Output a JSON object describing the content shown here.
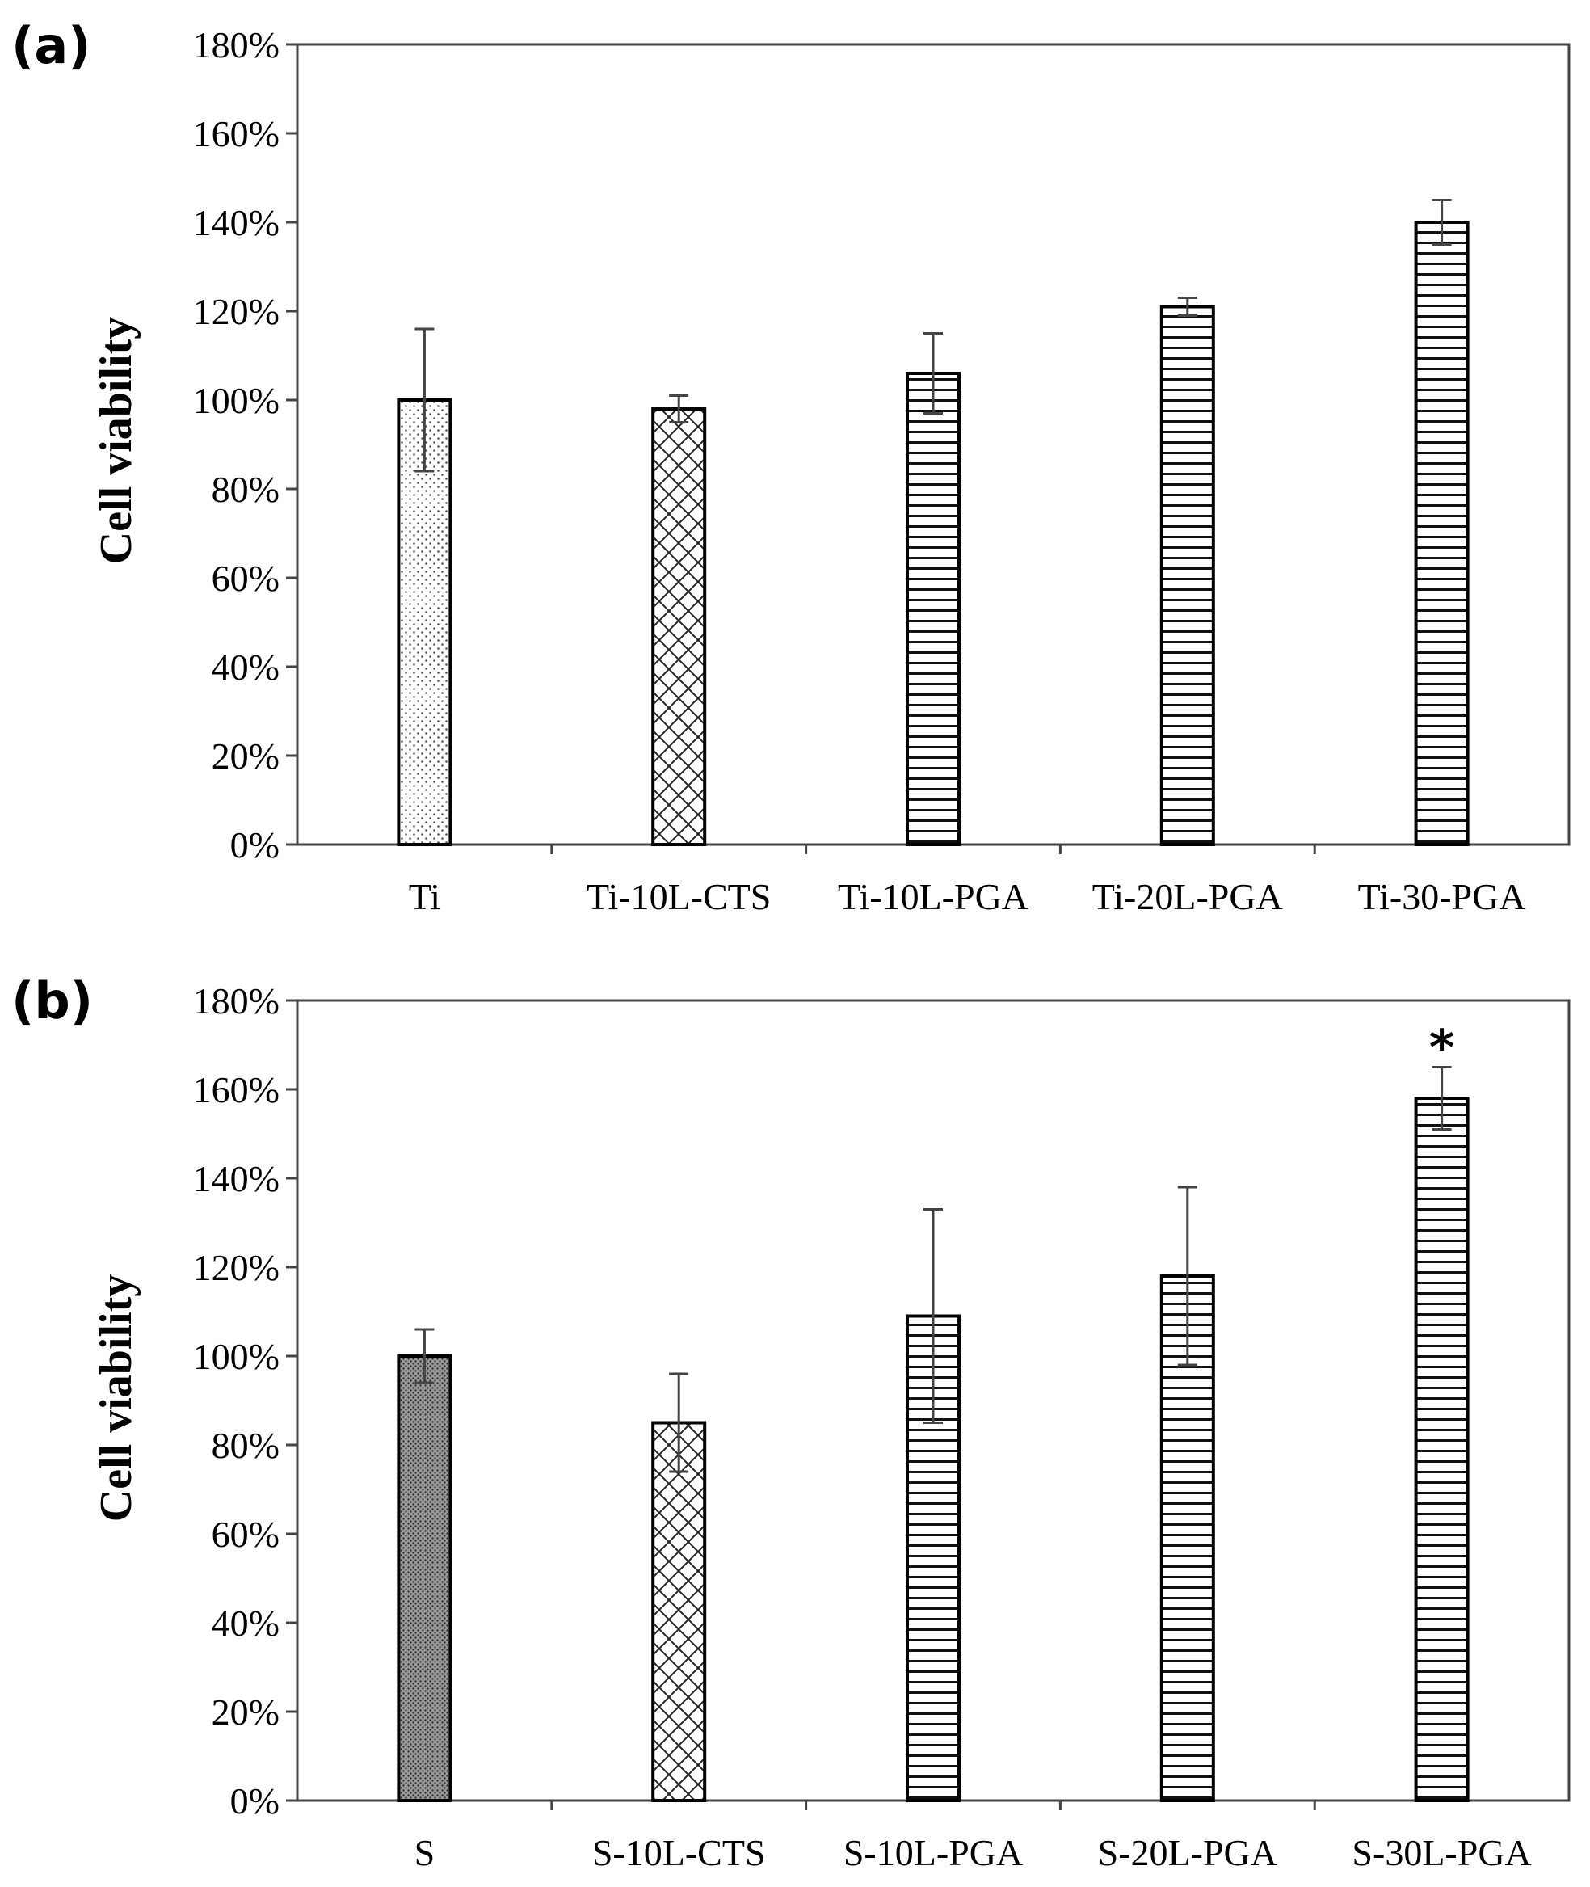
{
  "chart_data": [
    {
      "type": "bar",
      "panel_label": "(a)",
      "title": "",
      "xlabel": "",
      "ylabel": "Cell viability",
      "ylim": [
        0,
        180
      ],
      "yticks": [
        "0%",
        "20%",
        "40%",
        "60%",
        "80%",
        "100%",
        "120%",
        "140%",
        "160%",
        "180%"
      ],
      "categories": [
        "Ti",
        "Ti-10L-CTS",
        "Ti-10L-PGA",
        "Ti-20L-PGA",
        "Ti-30-PGA"
      ],
      "values": [
        100,
        98,
        106,
        121,
        140
      ],
      "errors": [
        16,
        3,
        9,
        2,
        5
      ],
      "patterns": [
        "dots",
        "crosshatch",
        "hlines",
        "hlines",
        "hlines"
      ],
      "annotations": [
        "",
        "",
        "",
        "",
        ""
      ],
      "grid": false
    },
    {
      "type": "bar",
      "panel_label": "(b)",
      "title": "",
      "xlabel": "",
      "ylabel": "Cell viability",
      "ylim": [
        0,
        180
      ],
      "yticks": [
        "0%",
        "20%",
        "40%",
        "60%",
        "80%",
        "100%",
        "120%",
        "140%",
        "160%",
        "180%"
      ],
      "categories": [
        "S",
        "S-10L-CTS",
        "S-10L-PGA",
        "S-20L-PGA",
        "S-30L-PGA"
      ],
      "values": [
        100,
        85,
        109,
        118,
        158
      ],
      "errors": [
        6,
        11,
        24,
        20,
        7
      ],
      "patterns": [
        "dense-dots",
        "crosshatch",
        "hlines",
        "hlines",
        "hlines"
      ],
      "annotations": [
        "",
        "",
        "",
        "",
        "*"
      ],
      "grid": false
    }
  ]
}
